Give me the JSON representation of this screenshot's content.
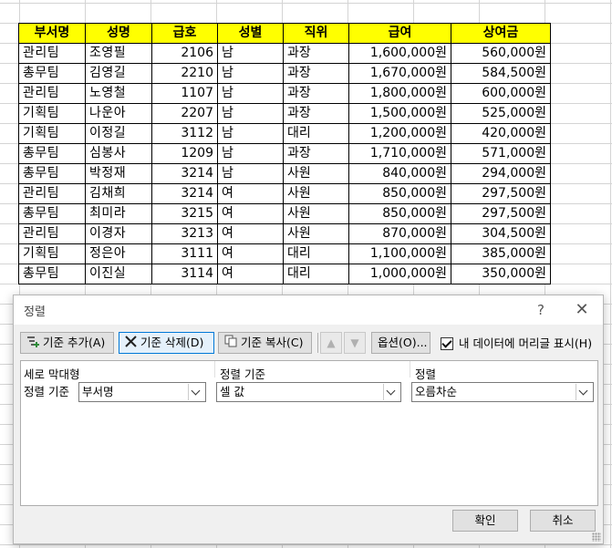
{
  "sheet": {
    "headers": [
      "부서명",
      "성명",
      "급호",
      "성별",
      "직위",
      "급여",
      "상여금"
    ],
    "rows": [
      [
        "관리팀",
        "조영필",
        "2106",
        "남",
        "과장",
        "1,600,000원",
        "560,000원"
      ],
      [
        "총무팀",
        "김영길",
        "2210",
        "남",
        "과장",
        "1,670,000원",
        "584,500원"
      ],
      [
        "관리팀",
        "노영철",
        "1107",
        "남",
        "과장",
        "1,800,000원",
        "600,000원"
      ],
      [
        "기획팀",
        "나운아",
        "2207",
        "남",
        "과장",
        "1,500,000원",
        "525,000원"
      ],
      [
        "기획팀",
        "이정길",
        "3112",
        "남",
        "대리",
        "1,200,000원",
        "420,000원"
      ],
      [
        "총무팀",
        "심봉사",
        "1209",
        "남",
        "과장",
        "1,710,000원",
        "571,000원"
      ],
      [
        "총무팀",
        "박정재",
        "3214",
        "남",
        "사원",
        "840,000원",
        "294,000원"
      ],
      [
        "관리팀",
        "김채희",
        "3214",
        "여",
        "사원",
        "850,000원",
        "297,500원"
      ],
      [
        "총무팀",
        "최미라",
        "3215",
        "여",
        "사원",
        "850,000원",
        "297,500원"
      ],
      [
        "관리팀",
        "이경자",
        "3213",
        "여",
        "사원",
        "870,000원",
        "304,500원"
      ],
      [
        "기획팀",
        "정은아",
        "3111",
        "여",
        "대리",
        "1,100,000원",
        "385,000원"
      ],
      [
        "총무팀",
        "이진실",
        "3114",
        "여",
        "대리",
        "1,000,000원",
        "350,000원"
      ]
    ],
    "header_fill": "#ffff00"
  },
  "dialog": {
    "title": "정렬",
    "help": "?",
    "close": "✕",
    "toolbar": {
      "add_level": "기준 추가(A)",
      "delete_level": "기준 삭제(D)",
      "copy_level": "기준 복사(C)",
      "move_up": "▲",
      "move_down": "▼",
      "options": "옵션(O)...",
      "has_headers_label": "내 데이터에 머리글 표시(H)",
      "has_headers_checked": true
    },
    "columns": {
      "column": "세로 막대형",
      "sort_on": "정렬 기준",
      "order": "정렬"
    },
    "level": {
      "label": "정렬 기준",
      "column_value": "부서명",
      "sort_on_value": "셀 값",
      "order_value": "오름차순"
    },
    "ok": "확인",
    "cancel": "취소"
  }
}
